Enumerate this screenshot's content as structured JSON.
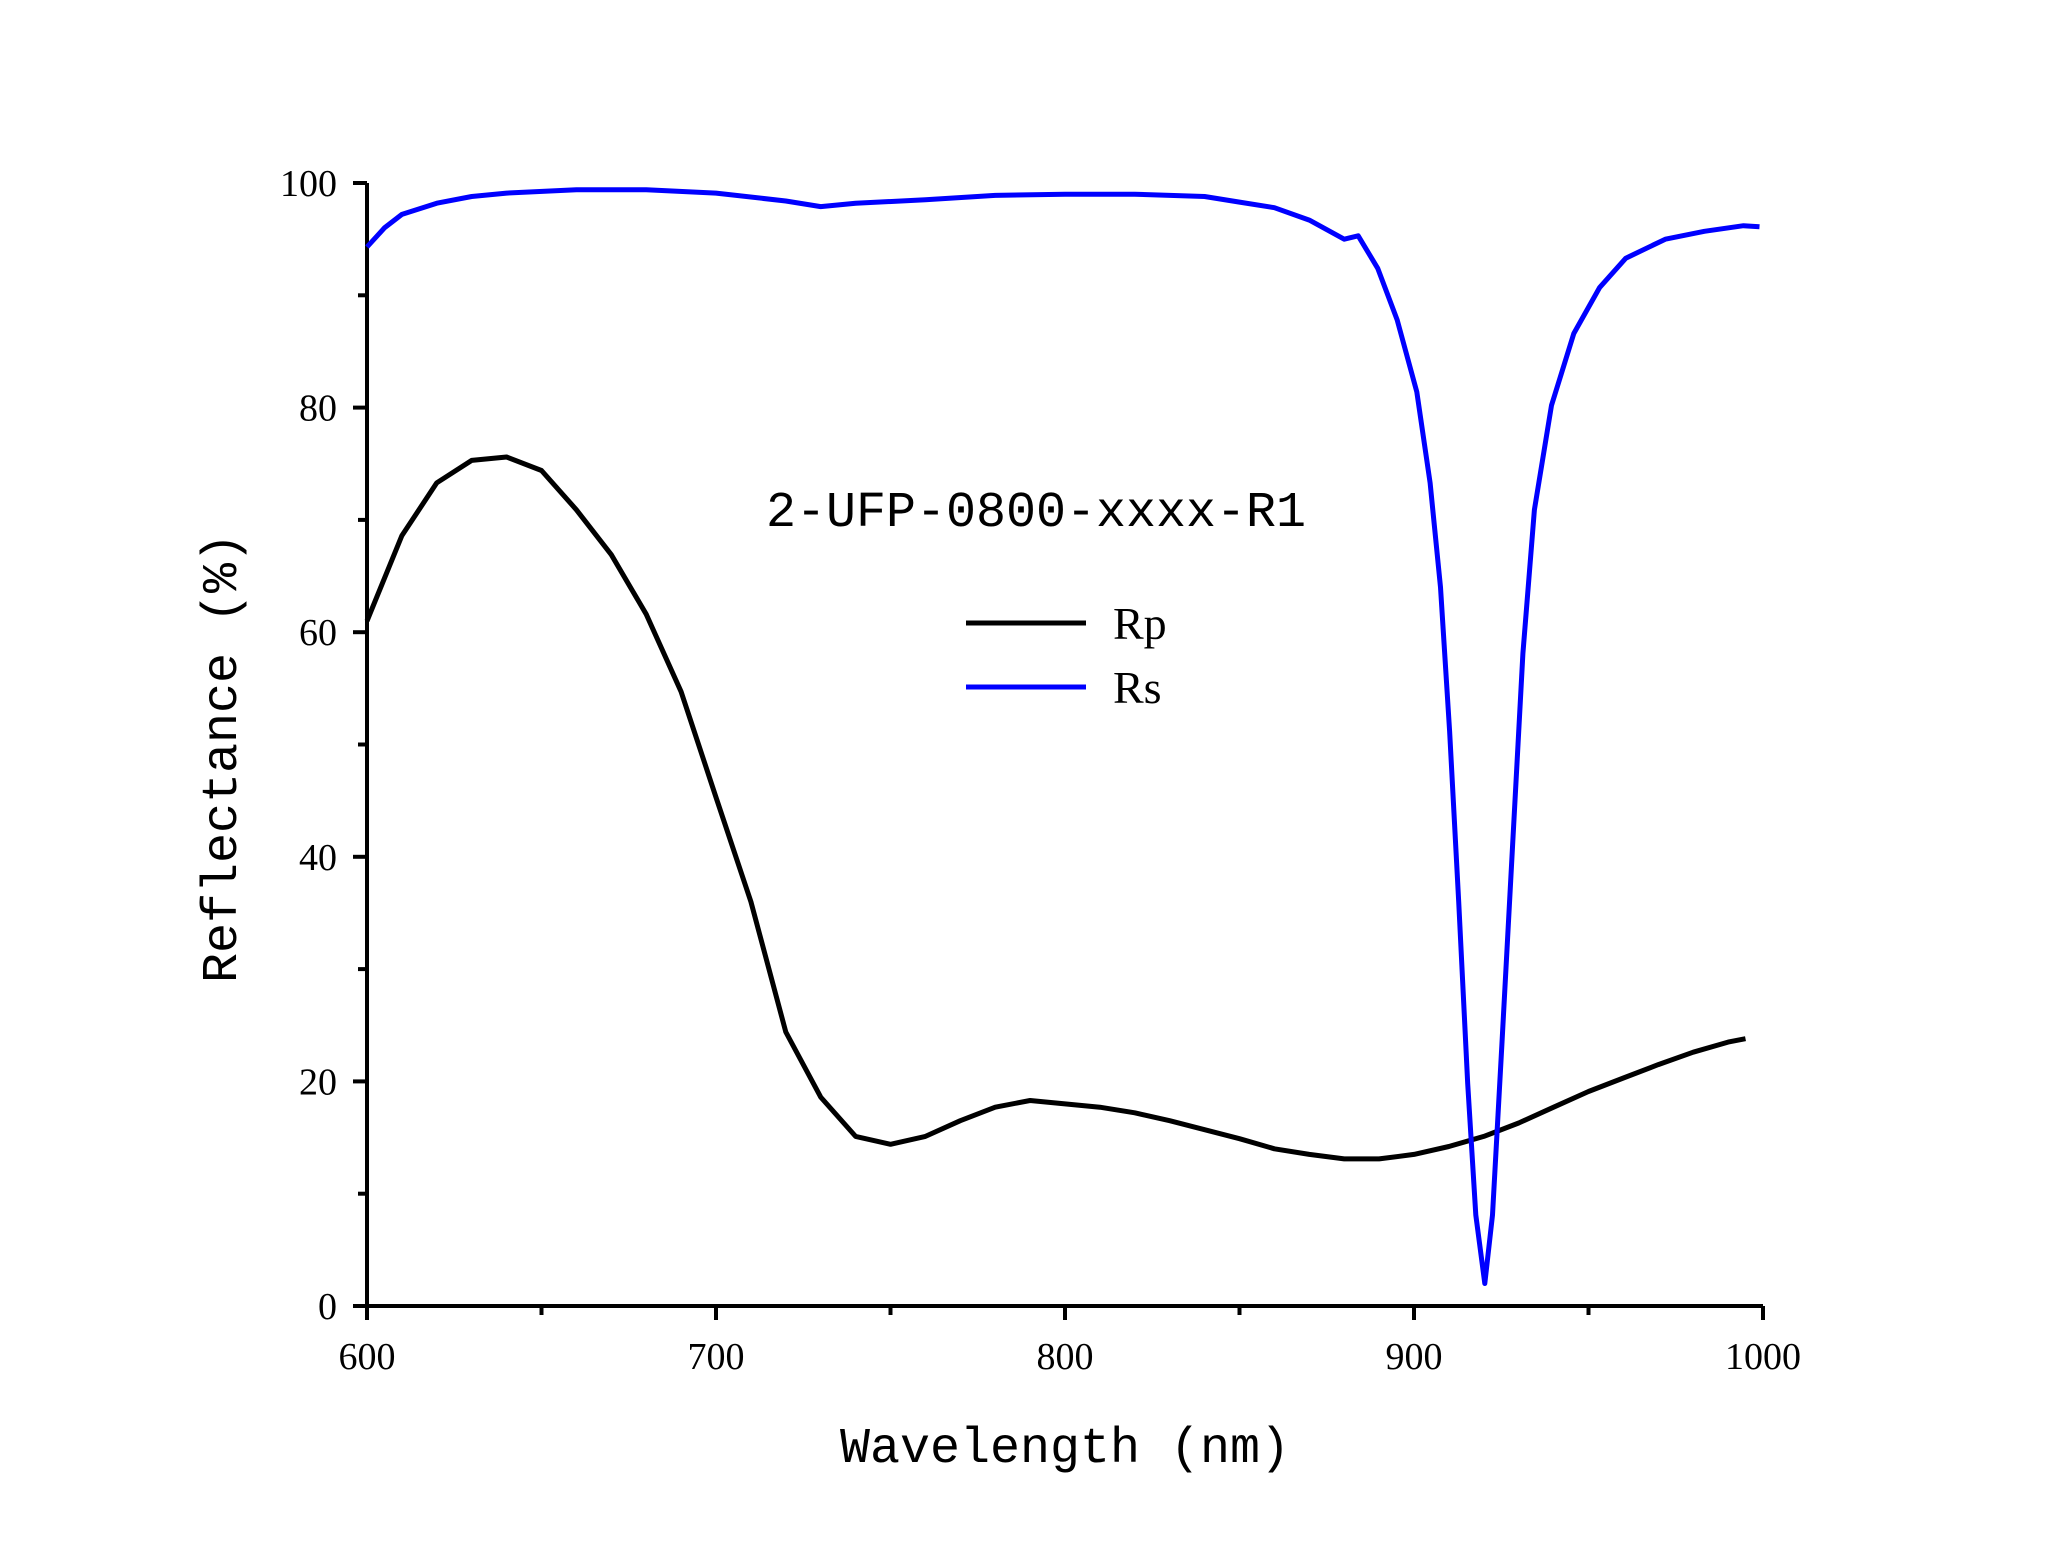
{
  "chart_data": {
    "type": "line",
    "title": "2-UFP-0800-xxxx-R1",
    "xlabel": "Wavelength (nm)",
    "ylabel": "Reflectance (%)",
    "xlim": [
      600,
      1000
    ],
    "ylim": [
      0,
      100
    ],
    "xticks": [
      600,
      700,
      800,
      900,
      1000
    ],
    "yticks": [
      0,
      20,
      40,
      60,
      80,
      100
    ],
    "grid": false,
    "legend_position": "center",
    "series": [
      {
        "name": "Rp",
        "color": "#000000",
        "x": [
          600,
          610,
          620,
          630,
          640,
          650,
          660,
          670,
          680,
          690,
          700,
          710,
          720,
          730,
          740,
          750,
          760,
          770,
          780,
          790,
          800,
          810,
          820,
          830,
          840,
          850,
          860,
          870,
          880,
          890,
          900,
          910,
          920,
          930,
          940,
          950,
          960,
          970,
          980,
          990,
          995
        ],
        "y": [
          61,
          68.6,
          73.3,
          75.3,
          75.6,
          74.4,
          70.9,
          66.9,
          61.6,
          54.7,
          45.3,
          36,
          24.4,
          18.6,
          15.1,
          14.4,
          15.1,
          16.5,
          17.7,
          18.3,
          18,
          17.7,
          17.2,
          16.5,
          15.7,
          14.9,
          14,
          13.5,
          13.1,
          13.1,
          13.5,
          14.2,
          15.1,
          16.3,
          17.7,
          19.1,
          20.3,
          21.5,
          22.6,
          23.5,
          23.8
        ]
      },
      {
        "name": "Rs",
        "color": "#0000FF",
        "x": [
          600,
          605,
          610,
          620,
          630,
          640,
          660,
          680,
          700,
          720,
          730,
          740,
          760,
          780,
          800,
          820,
          840,
          850,
          860,
          870,
          880,
          884,
          889.6,
          895.2,
          900.8,
          904.6,
          907.6,
          910.2,
          912.8,
          915.4,
          917.7,
          920.3,
          922.5,
          925.2,
          928.2,
          931.2,
          934.5,
          939.4,
          945.8,
          953.2,
          960.7,
          972,
          983.2,
          994.4,
          999
        ],
        "y": [
          94.3,
          96,
          97.2,
          98.2,
          98.8,
          99.1,
          99.4,
          99.4,
          99.1,
          98.4,
          97.9,
          98.2,
          98.5,
          98.9,
          99,
          99,
          98.8,
          98.3,
          97.8,
          96.7,
          95,
          95.3,
          92.4,
          87.8,
          81.4,
          73.3,
          64,
          51.2,
          36,
          19.8,
          8.1,
          2,
          8.1,
          23.3,
          40.7,
          58.1,
          70.9,
          80.2,
          86.6,
          90.7,
          93.3,
          95,
          95.7,
          96.2,
          96.1
        ]
      }
    ]
  }
}
